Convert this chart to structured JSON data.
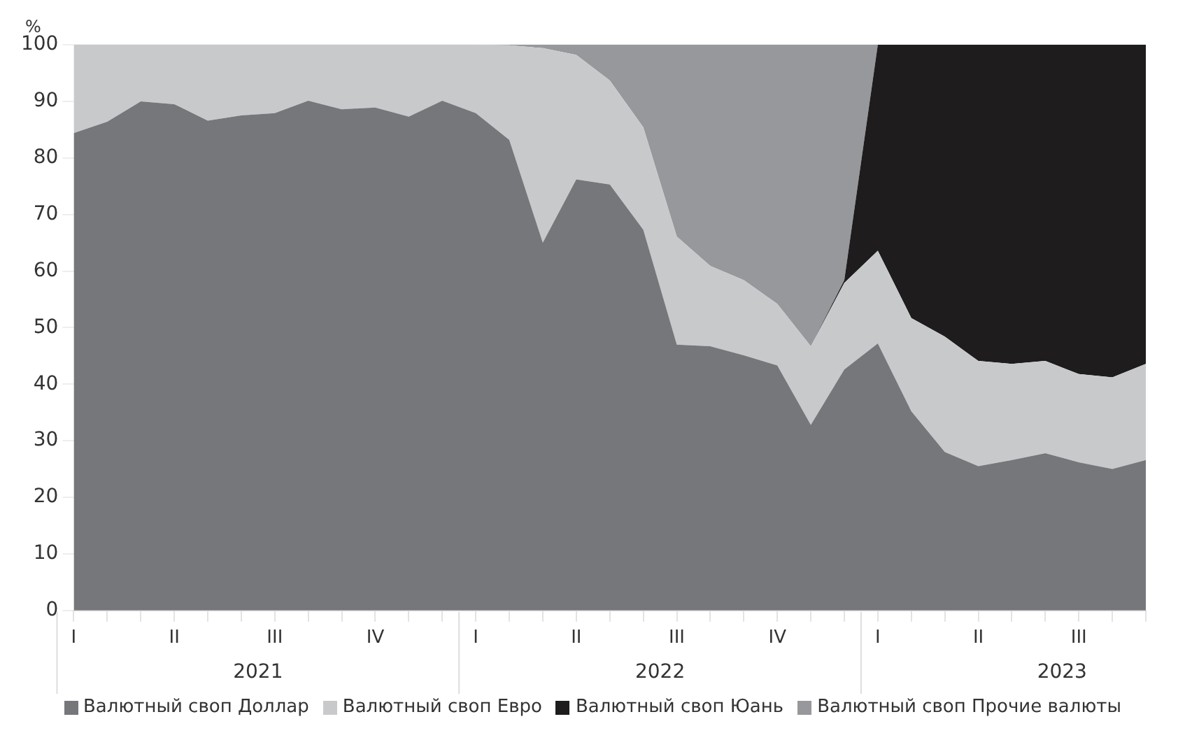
{
  "chart_data": {
    "type": "area",
    "stacked": true,
    "ylabel": "%",
    "categories": [
      "I",
      null,
      null,
      "II",
      null,
      null,
      "III",
      null,
      null,
      "IV",
      null,
      null,
      "I",
      null,
      null,
      "II",
      null,
      null,
      "III",
      null,
      null,
      "IV",
      null,
      null,
      "I",
      null,
      null,
      "II",
      null,
      null,
      "III",
      null,
      null
    ],
    "annotations": [
      "2021",
      "2022",
      "2023"
    ],
    "series": [
      {
        "name": "Валютный своп Доллар",
        "color": "#76777b",
        "values": [
          84.4,
          86.4,
          90,
          89.5,
          86.6,
          87.5,
          87.9,
          90.1,
          88.6,
          88.9,
          87.3,
          90.1,
          87.9,
          83.2,
          65,
          76.2,
          75.3,
          67.3,
          47,
          46.7,
          45.1,
          43.3,
          32.8,
          42.6,
          47.2,
          35.2,
          28,
          25.5,
          26.6,
          27.8,
          26.2,
          25,
          26.6
        ]
      },
      {
        "name": "Валютный своп Евро",
        "color": "#c8c9cb",
        "values": [
          15.6,
          13.6,
          10,
          10.5,
          13.4,
          12.5,
          12.1,
          9.9,
          11.4,
          11.1,
          12.7,
          9.9,
          12.1,
          16.7,
          34.4,
          22,
          18.4,
          18.1,
          19.1,
          14.2,
          13.3,
          10.9,
          13.9,
          15.3,
          16.4,
          16.5,
          20.4,
          18.6,
          17,
          16.3,
          15.6,
          16.2,
          17
        ]
      },
      {
        "name": "Валютный своп Юань",
        "color": "#1e1c1d",
        "values": [
          0,
          0,
          0,
          0,
          0,
          0,
          0,
          0,
          0,
          0,
          0,
          0,
          0,
          0,
          0,
          0,
          0,
          0,
          0,
          0,
          0,
          0,
          0,
          0.5,
          36.4,
          48.3,
          51.6,
          55.9,
          56.4,
          55.9,
          58.2,
          58.8,
          56.4
        ]
      },
      {
        "name": "Валютный своп Прочие валюты",
        "color": "#97989b",
        "values": [
          0,
          0,
          0,
          0,
          0,
          0,
          0,
          0,
          0,
          0,
          0,
          0,
          0,
          0.1,
          0.6,
          1.8,
          6.3,
          14.6,
          33.9,
          39.1,
          41.6,
          45.8,
          53.3,
          41.6,
          0,
          0,
          0,
          0,
          0,
          0,
          0,
          0,
          0
        ]
      }
    ],
    "ylim": [
      0,
      100
    ],
    "yticks": [
      0,
      10,
      20,
      30,
      40,
      50,
      60,
      70,
      80,
      90,
      100
    ],
    "grid": "y",
    "legend": "bottom"
  }
}
